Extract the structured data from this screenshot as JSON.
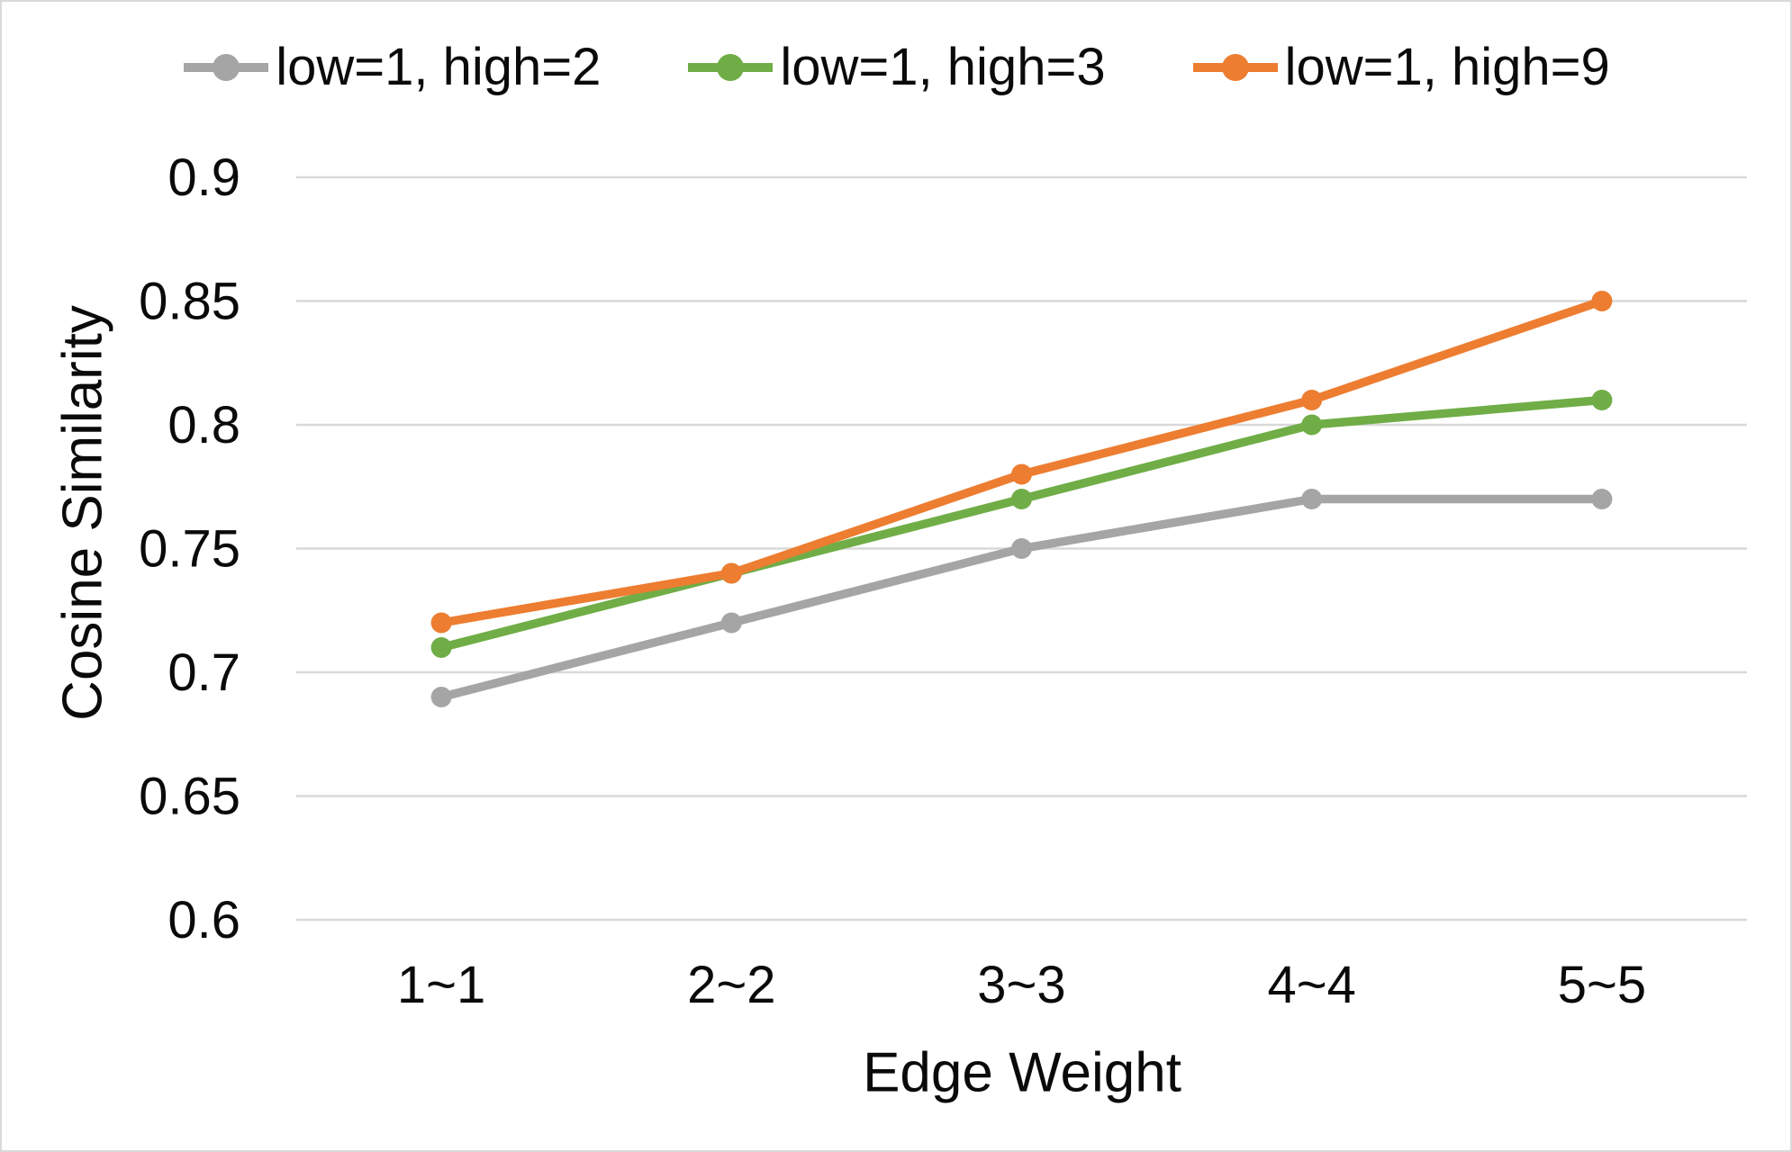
{
  "chart_data": {
    "type": "line",
    "title": "",
    "xlabel": "Edge Weight",
    "ylabel": "Cosine Similarity",
    "categories": [
      "1~1",
      "2~2",
      "3~3",
      "4~4",
      "5~5"
    ],
    "series": [
      {
        "name": "low=1, high=2",
        "color": "#A5A5A5",
        "values": [
          0.69,
          0.72,
          0.75,
          0.77,
          0.77
        ]
      },
      {
        "name": "low=1, high=3",
        "color": "#70AD47",
        "values": [
          0.71,
          0.74,
          0.77,
          0.8,
          0.81
        ]
      },
      {
        "name": "low=1, high=9",
        "color": "#ED7D31",
        "values": [
          0.72,
          0.74,
          0.78,
          0.81,
          0.85
        ]
      }
    ],
    "ylim": [
      0.6,
      0.9
    ],
    "ytick_labels": [
      "0.6",
      "0.65",
      "0.7",
      "0.75",
      "0.8",
      "0.85",
      "0.9"
    ],
    "xtick_labels": [
      "1~1",
      "2~2",
      "3~3",
      "4~4",
      "5~5"
    ],
    "grid": true,
    "legend_position": "top",
    "marker": "circle"
  },
  "colors": {
    "gridline": "#D9D9D9",
    "text": "#0A0A0A",
    "background": "#FFFFFF",
    "frame_border": "#D9D9D9"
  }
}
